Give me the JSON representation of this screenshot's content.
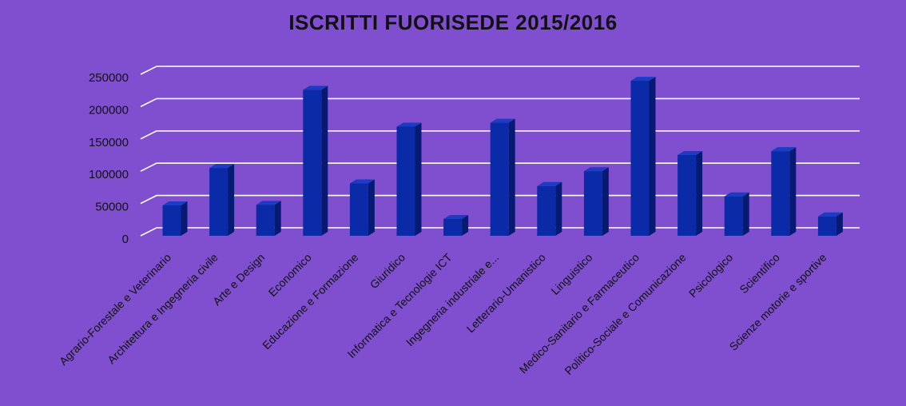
{
  "chart_data": {
    "type": "bar",
    "title": "ISCRITTI FUORISEDE 2015/2016",
    "xlabel": "",
    "ylabel": "",
    "ylim": [
      0,
      250000
    ],
    "yticks": [
      0,
      50000,
      100000,
      150000,
      200000,
      250000
    ],
    "ytick_labels": [
      "0",
      "50000",
      "100000",
      "150000",
      "200000",
      "250000"
    ],
    "grid": true,
    "legend": "none",
    "categories": [
      "Agrario-Forestale e Veterinario",
      "Architettura e Ingegneria civile",
      "Arte e Design",
      "Economico",
      "Educazione e Formazione",
      "Giuridico",
      "Informatica e Tecnologie ICT",
      "Ingegneria industriale e...",
      "Letterario-Umanistico",
      "Linguistico",
      "Medico-Sanitario e Farmaceutico",
      "Politico-Sociale e Comunicazione",
      "Psicologico",
      "Scientifico",
      "Scienze motorie e sportive"
    ],
    "values": [
      47000,
      105000,
      48000,
      226000,
      81000,
      169000,
      26000,
      175000,
      77000,
      100000,
      240000,
      125000,
      61000,
      131000,
      30000
    ],
    "colors": {
      "background": "#7f4fcf",
      "bar_front": "#0a2aa8",
      "bar_side": "#061a72",
      "bar_top": "#1c3cc4",
      "grid": "#ffffff",
      "text": "#111111"
    }
  }
}
